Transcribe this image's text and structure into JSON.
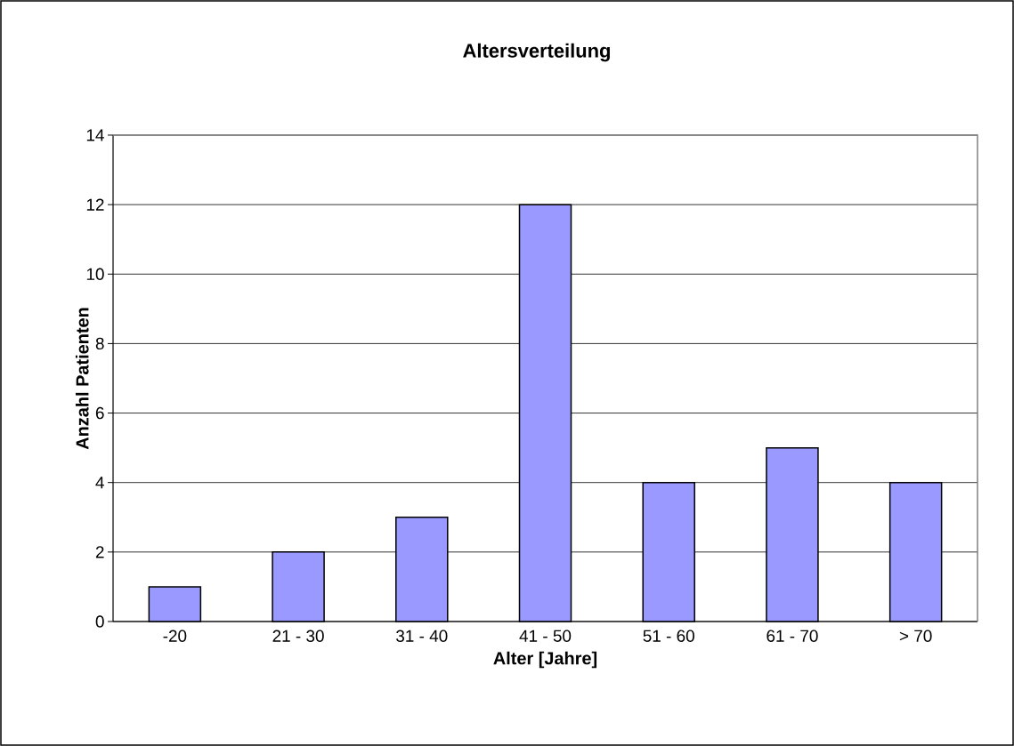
{
  "chart_data": {
    "type": "bar",
    "title": "Altersverteilung",
    "xlabel": "Alter [Jahre]",
    "ylabel": "Anzahl Patienten",
    "categories": [
      "-20",
      "21 - 30",
      "31 - 40",
      "41 - 50",
      "51 - 60",
      "61 - 70",
      "> 70"
    ],
    "values": [
      1,
      2,
      3,
      12,
      4,
      5,
      4
    ],
    "color": "#9999ff",
    "ylim": [
      0,
      14
    ],
    "yticks": [
      0,
      2,
      4,
      6,
      8,
      10,
      12,
      14
    ],
    "grid": "y"
  }
}
